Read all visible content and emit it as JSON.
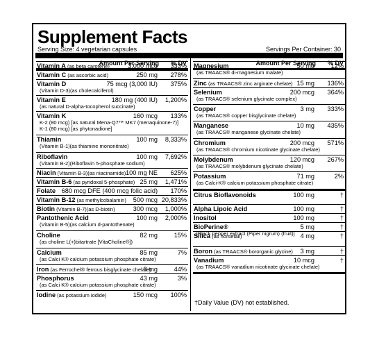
{
  "title": "Supplement Facts",
  "serving_size": "Serving Size: 4 vegetarian capsules",
  "servings_per_container": "Servings Per Container: 30",
  "header": {
    "amount": "Amount Per Serving",
    "dv": "% DV"
  },
  "left": [
    {
      "name": "Vitamin A",
      "src": "(as beta carotene)",
      "amount": "3,000 mcg",
      "dv": "333%"
    },
    {
      "name": "Vitamin C",
      "src": "(as ascorbic acid)",
      "amount": "250 mg",
      "dv": "278%"
    },
    {
      "name": "Vitamin D",
      "amount": "75 mcg (3,000 IU)",
      "dv": "375%",
      "sub": [
        "(Vitamin D-3)(as cholecalciferol)"
      ]
    },
    {
      "name": "Vitamin E",
      "amount": "180 mg (400 IU)",
      "dv": "1,200%",
      "sub": [
        "(as natural D-alpha-tocopherol succinate)"
      ]
    },
    {
      "name": "Vitamin K",
      "amount": "160 mcg",
      "dv": "133%",
      "sub": [
        "K-2 (80 mcg) [as natural Mena-Q7™ MK7 (menaquinone-7)]",
        "K-1 (80 mcg) [as phytonadione]"
      ]
    },
    {
      "name": "Thiamin",
      "amount": "100 mg",
      "dv": "8,333%",
      "sub": [
        "(Vitamin B-1)(as thiamine mononitrate)"
      ]
    },
    {
      "name": "Riboflavin",
      "amount": "100 mg",
      "dv": "7,692%",
      "sub": [
        "(Vitamin B-2)(Riboflavin 5-phosphate sodium)"
      ]
    },
    {
      "name": "Niacin",
      "src": "(Vitamin B-3)(as niacinamide)",
      "amount": "100 mg NE",
      "dv": "625%"
    },
    {
      "name": "Vitamin B-6",
      "src": "(as pyridoxal 5-phosphate)",
      "amount": "25 mg",
      "dv": "1,471%"
    },
    {
      "name": "Folate",
      "amount": "680 mcg DFE (400 mcg folic acid)",
      "dv": "170%"
    },
    {
      "name": "Vitamin B-12",
      "src": "(as methylcobalamin)",
      "amount": "500 mcg",
      "dv": "20,833%"
    },
    {
      "name": "Biotin",
      "src": "(Vitamin B-7)(as D-biotin)",
      "amount": "300 mcg",
      "dv": "1,000%"
    },
    {
      "name": "Pantothenic Acid",
      "amount": "100 mg",
      "dv": "2,000%",
      "sub": [
        "(Vitamin B-5)(as calcium d-pantothenate)"
      ]
    },
    {
      "name": "Choline",
      "amount": "82 mg",
      "dv": "15%",
      "sub": [
        "(as choline L(+)bitartrate [VitaCholine®])"
      ]
    },
    {
      "name": "Calcium",
      "amount": "85 mg",
      "dv": "7%",
      "sub": [
        "(as Calci K® calcium potassium phosphate citrate)"
      ]
    },
    {
      "name": "Iron",
      "src": "(as Ferrochel® ferrous bisglycinate chelate)",
      "amount": "8 mg",
      "dv": "44%"
    },
    {
      "name": "Phosphorus",
      "amount": "43 mg",
      "dv": "3%",
      "sub": [
        "(as Calci K® calcium potassium phosphate citrate)"
      ]
    },
    {
      "name": "Iodine",
      "src": "(as potassium iodide)",
      "amount": "150 mcg",
      "dv": "100%"
    }
  ],
  "right": [
    {
      "name": "Magnesium",
      "amount": "50 mg",
      "dv": "12%",
      "sub": [
        "(as TRAACS® di-magnesium malate)"
      ]
    },
    {
      "name": "Zinc",
      "src": "(as TRAACS® zinc arginate chelate)",
      "amount": "15 mg",
      "dv": "136%"
    },
    {
      "name": "Selenium",
      "amount": "200 mcg",
      "dv": "364%",
      "sub": [
        "(as TRAACS® selenium glycinate complex)"
      ]
    },
    {
      "name": "Copper",
      "amount": "3 mg",
      "dv": "333%",
      "sub": [
        "(as TRAACS® copper bisglycinate chelate)"
      ]
    },
    {
      "name": "Manganese",
      "amount": "10 mg",
      "dv": "435%",
      "sub": [
        "(as TRAACS® manganese glycinate chelate)"
      ]
    },
    {
      "name": "Chromium",
      "amount": "200 mcg",
      "dv": "571%",
      "sub": [
        "(as TRAACS® chromium nicotinate glycinate chelate)"
      ]
    },
    {
      "name": "Molybdenum",
      "amount": "120 mcg",
      "dv": "267%",
      "sub": [
        "(as TRAACS® molybdenum glycinate chelate)"
      ]
    },
    {
      "name": "Potassium",
      "amount": "71 mg",
      "dv": "2%",
      "sub": [
        "(as Calci-K® calcium potassium phosphate citrate)"
      ]
    },
    {
      "name": "Citrus Bioflavonoids",
      "amount": "100 mg",
      "dv": "†"
    },
    {
      "name": "Alpha Lipoic Acid",
      "amount": "100 mg",
      "dv": "†"
    },
    {
      "name": "Inositol",
      "amount": "100 mg",
      "dv": "†"
    },
    {
      "name": "BioPerine®",
      "amount": "5 mg",
      "dv": "†",
      "sub": [
        "[Black pepper extract (Piper nigrum) (fruit)]"
      ]
    },
    {
      "name": "Silica",
      "src": "(as horsetail)",
      "amount": "4 mg",
      "dv": "†"
    },
    {
      "name": "Boron",
      "src": "(as TRAACS® bororganic glycine)",
      "amount": "3 mg",
      "dv": "†"
    },
    {
      "name": "Vanadium",
      "amount": "10 mcg",
      "dv": "†",
      "sub": [
        "(as TRAACS® vanadium nicotinate glycinate chelate)"
      ]
    }
  ],
  "footnote": "†Daily Value (DV) not established."
}
